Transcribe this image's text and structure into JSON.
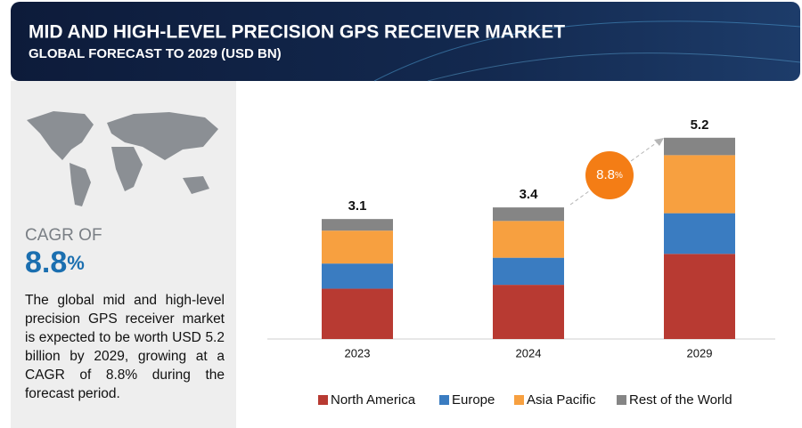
{
  "header": {
    "title": "MID AND HIGH-LEVEL PRECISION GPS RECEIVER MARKET",
    "subtitle": "GLOBAL FORECAST TO 2029 (USD BN)"
  },
  "sidebar": {
    "cagr_label": "CAGR OF",
    "cagr_value": "8.8",
    "cagr_unit": "%",
    "description": "The global mid and high-level precision GPS receiver market is expected to be worth USD 5.2 billion by 2029, growing at a CAGR of 8.8% during the forecast period."
  },
  "chart_data": {
    "type": "stacked_bar",
    "categories": [
      "2023",
      "2024",
      "2029"
    ],
    "totals": [
      3.1,
      3.4,
      5.2
    ],
    "growth_badge": {
      "value": "8.8",
      "unit": "%"
    },
    "series": [
      {
        "name": "North America",
        "color": "#b83a32",
        "values": [
          1.3,
          1.4,
          2.2
        ]
      },
      {
        "name": "Europe",
        "color": "#3a7cc1",
        "values": [
          0.65,
          0.7,
          1.05
        ]
      },
      {
        "name": "Asia Pacific",
        "color": "#f7a040",
        "values": [
          0.85,
          0.95,
          1.5
        ]
      },
      {
        "name": "Rest of the World",
        "color": "#858585",
        "values": [
          0.3,
          0.35,
          0.45
        ]
      }
    ]
  }
}
